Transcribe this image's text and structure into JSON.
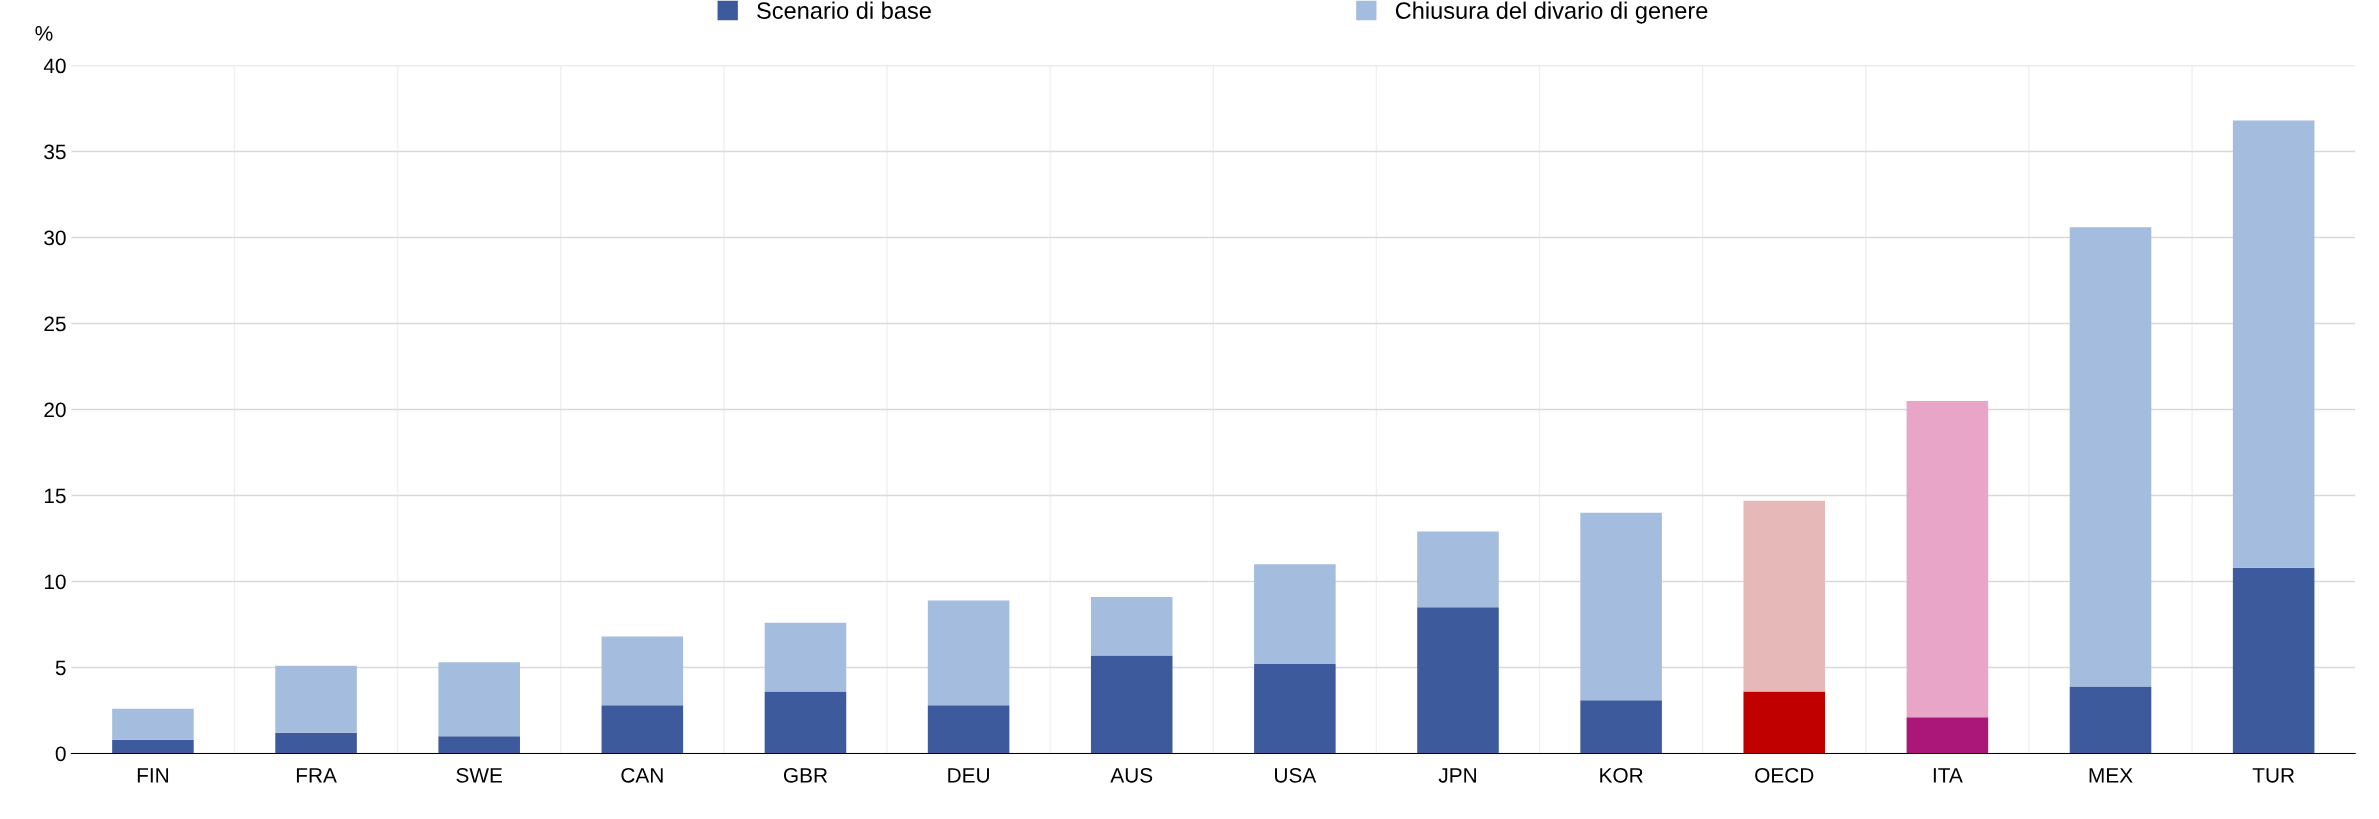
{
  "chart_data": {
    "type": "bar",
    "stacked": true,
    "ylabel": "%",
    "categories": [
      "FIN",
      "FRA",
      "SWE",
      "CAN",
      "GBR",
      "DEU",
      "AUS",
      "USA",
      "JPN",
      "KOR",
      "OECD",
      "ITA",
      "MEX",
      "TUR"
    ],
    "series": [
      {
        "name": "Scenario di base",
        "color": "#3c5a9c",
        "colors": [
          "#3c5a9c",
          "#3c5a9c",
          "#3c5a9c",
          "#3c5a9c",
          "#3c5a9c",
          "#3c5a9c",
          "#3c5a9c",
          "#3c5a9c",
          "#3c5a9c",
          "#3c5a9c",
          "#c00000",
          "#ab1778",
          "#3c5a9c",
          "#3c5a9c"
        ],
        "values": [
          0.8,
          1.2,
          1.0,
          2.8,
          3.6,
          2.8,
          5.7,
          5.2,
          8.5,
          3.1,
          3.6,
          2.1,
          3.9,
          10.8
        ]
      },
      {
        "name": "Chiusura del divario di genere",
        "color": "#a4bcdd",
        "colors": [
          "#a4bcdd",
          "#a4bcdd",
          "#a4bcdd",
          "#a4bcdd",
          "#a4bcdd",
          "#a4bcdd",
          "#a4bcdd",
          "#a4bcdd",
          "#a4bcdd",
          "#a4bcdd",
          "#e6b9b8",
          "#e8a5c7",
          "#a4bcdd",
          "#a4bcdd"
        ],
        "values": [
          1.8,
          3.9,
          4.3,
          4.0,
          4.0,
          6.1,
          3.4,
          5.8,
          4.4,
          10.9,
          11.1,
          18.4,
          26.7,
          26.0
        ]
      }
    ],
    "ylim": [
      0,
      40
    ],
    "yticks": [
      0,
      5,
      10,
      15,
      20,
      25,
      30,
      35,
      40
    ],
    "grid": true,
    "legend": "top"
  }
}
